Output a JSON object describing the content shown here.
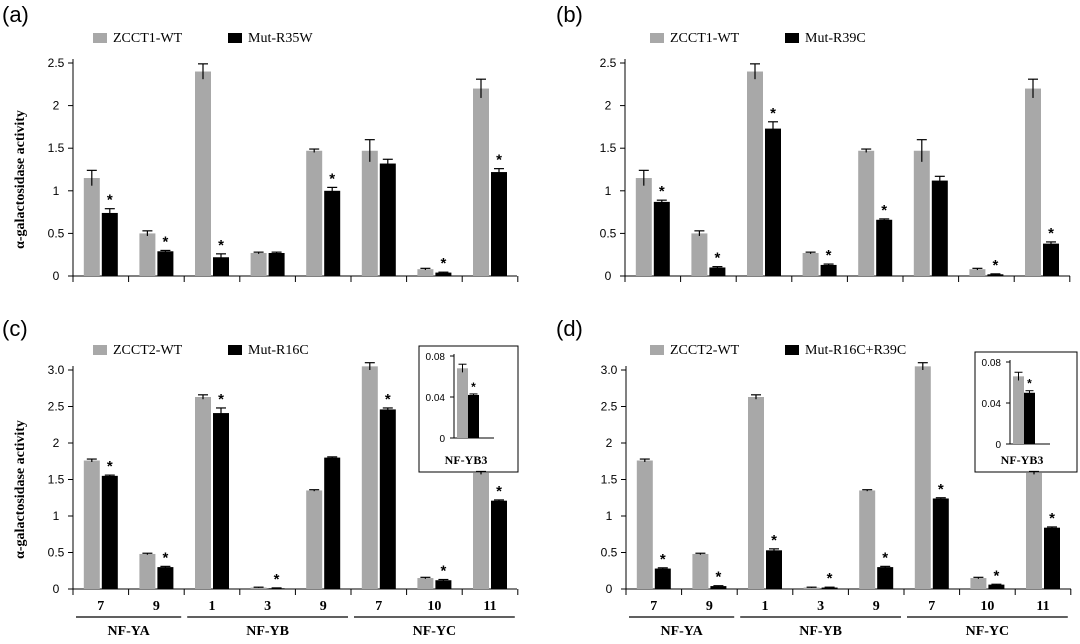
{
  "colors": {
    "gray": "#a8a8a8",
    "black": "#000000",
    "axis": "#000000"
  },
  "chart_data": [
    {
      "id": "a",
      "panel_label": "(a)",
      "type": "bar",
      "ylabel": "α-galactosidase activity",
      "ylim": [
        0,
        2.5
      ],
      "yticks": [
        0,
        0.5,
        1,
        1.5,
        2,
        2.5
      ],
      "ytick_labels": [
        "0",
        "0.5",
        "1",
        "1.5",
        "2",
        "2.5"
      ],
      "legend": {
        "position": "top-left",
        "entries": [
          "ZCCT1-WT",
          "Mut-R35W"
        ]
      },
      "series": [
        {
          "name": "ZCCT1-WT",
          "values": [
            1.15,
            0.5,
            2.4,
            0.27,
            1.47,
            1.47,
            0.08,
            2.2
          ],
          "errors": [
            0.09,
            0.03,
            0.09,
            0.01,
            0.02,
            0.13,
            0.01,
            0.11
          ]
        },
        {
          "name": "Mut-R35W",
          "values": [
            0.74,
            0.29,
            0.22,
            0.27,
            1.0,
            1.32,
            0.04,
            1.22
          ],
          "errors": [
            0.05,
            0.01,
            0.04,
            0.01,
            0.04,
            0.05,
            0.005,
            0.04
          ]
        }
      ],
      "significant": [
        true,
        true,
        true,
        false,
        true,
        false,
        true,
        true
      ],
      "n_groups": 8,
      "group_labels": [],
      "family_labels": []
    },
    {
      "id": "b",
      "panel_label": "(b)",
      "type": "bar",
      "ylabel": "",
      "ylim": [
        0,
        2.5
      ],
      "yticks": [
        0,
        0.5,
        1,
        1.5,
        2,
        2.5
      ],
      "ytick_labels": [
        "0",
        "0.5",
        "1",
        "1.5",
        "2",
        "2.5"
      ],
      "legend": {
        "position": "top-left",
        "entries": [
          "ZCCT1-WT",
          "Mut-R39C"
        ]
      },
      "series": [
        {
          "name": "ZCCT1-WT",
          "values": [
            1.15,
            0.5,
            2.4,
            0.27,
            1.47,
            1.47,
            0.08,
            2.2
          ],
          "errors": [
            0.09,
            0.03,
            0.09,
            0.01,
            0.02,
            0.13,
            0.01,
            0.11
          ]
        },
        {
          "name": "Mut-R39C",
          "values": [
            0.87,
            0.1,
            1.73,
            0.13,
            0.66,
            1.12,
            0.02,
            0.38
          ],
          "errors": [
            0.02,
            0.01,
            0.08,
            0.01,
            0.01,
            0.05,
            0.005,
            0.02
          ]
        }
      ],
      "significant": [
        true,
        true,
        true,
        true,
        true,
        false,
        true,
        true
      ],
      "n_groups": 8,
      "group_labels": [],
      "family_labels": []
    },
    {
      "id": "c",
      "panel_label": "(c)",
      "type": "bar",
      "ylabel": "α-galactosidase activity",
      "ylim": [
        0,
        3.0
      ],
      "yticks": [
        0,
        0.5,
        1,
        1.5,
        2,
        2.5,
        3
      ],
      "ytick_labels": [
        "0",
        "0.5",
        "1",
        "1.5",
        "2",
        "2.5",
        "3.0"
      ],
      "legend": {
        "position": "top-left",
        "entries": [
          "ZCCT2-WT",
          "Mut-R16C"
        ]
      },
      "series": [
        {
          "name": "ZCCT2-WT",
          "values": [
            1.76,
            0.48,
            2.63,
            0.02,
            1.35,
            3.05,
            0.15,
            1.59
          ],
          "errors": [
            0.02,
            0.01,
            0.03,
            0.005,
            0.01,
            0.05,
            0.01,
            0.02
          ]
        },
        {
          "name": "Mut-R16C",
          "values": [
            1.55,
            0.3,
            2.41,
            0.01,
            1.8,
            2.46,
            0.12,
            1.21
          ],
          "errors": [
            0.01,
            0.01,
            0.07,
            0.005,
            0.01,
            0.02,
            0.01,
            0.01
          ]
        }
      ],
      "significant": [
        true,
        true,
        true,
        true,
        false,
        true,
        true,
        true
      ],
      "n_groups": 8,
      "group_labels": [
        "7",
        "9",
        "1",
        "3",
        "9",
        "7",
        "10",
        "11"
      ],
      "family_labels": [
        "NF-YA",
        "NF-YB",
        "NF-YC"
      ],
      "inset": {
        "title": "NF-YB3",
        "ylim": [
          0,
          0.08
        ],
        "ytick_labels": [
          "0",
          "0.04",
          "0.08"
        ],
        "values": [
          0.068,
          0.042
        ],
        "errors": [
          0.004,
          0.001
        ],
        "significant": true
      }
    },
    {
      "id": "d",
      "panel_label": "(d)",
      "type": "bar",
      "ylabel": "",
      "ylim": [
        0,
        3.0
      ],
      "yticks": [
        0,
        0.5,
        1,
        1.5,
        2,
        2.5,
        3
      ],
      "ytick_labels": [
        "0",
        "0.5",
        "1",
        "1.5",
        "2",
        "2.5",
        "3.0"
      ],
      "legend": {
        "position": "top-left",
        "entries": [
          "ZCCT2-WT",
          "Mut-R16C+R39C"
        ]
      },
      "series": [
        {
          "name": "ZCCT2-WT",
          "values": [
            1.76,
            0.48,
            2.63,
            0.02,
            1.35,
            3.05,
            0.15,
            1.59
          ],
          "errors": [
            0.02,
            0.01,
            0.03,
            0.005,
            0.01,
            0.05,
            0.01,
            0.02
          ]
        },
        {
          "name": "Mut-R16C+R39C",
          "values": [
            0.28,
            0.04,
            0.53,
            0.02,
            0.3,
            1.24,
            0.06,
            0.84
          ],
          "errors": [
            0.01,
            0.005,
            0.02,
            0.005,
            0.01,
            0.01,
            0.005,
            0.01
          ]
        }
      ],
      "significant": [
        true,
        true,
        true,
        true,
        true,
        true,
        true,
        true
      ],
      "n_groups": 8,
      "group_labels": [
        "7",
        "9",
        "1",
        "3",
        "9",
        "7",
        "10",
        "11"
      ],
      "family_labels": [
        "NF-YA",
        "NF-YB",
        "NF-YC"
      ],
      "inset": {
        "title": "NF-YB3",
        "ylim": [
          0,
          0.08
        ],
        "ytick_labels": [
          "0",
          "0.04",
          "0.08"
        ],
        "values": [
          0.066,
          0.05
        ],
        "errors": [
          0.004,
          0.002
        ],
        "significant": true
      }
    }
  ]
}
